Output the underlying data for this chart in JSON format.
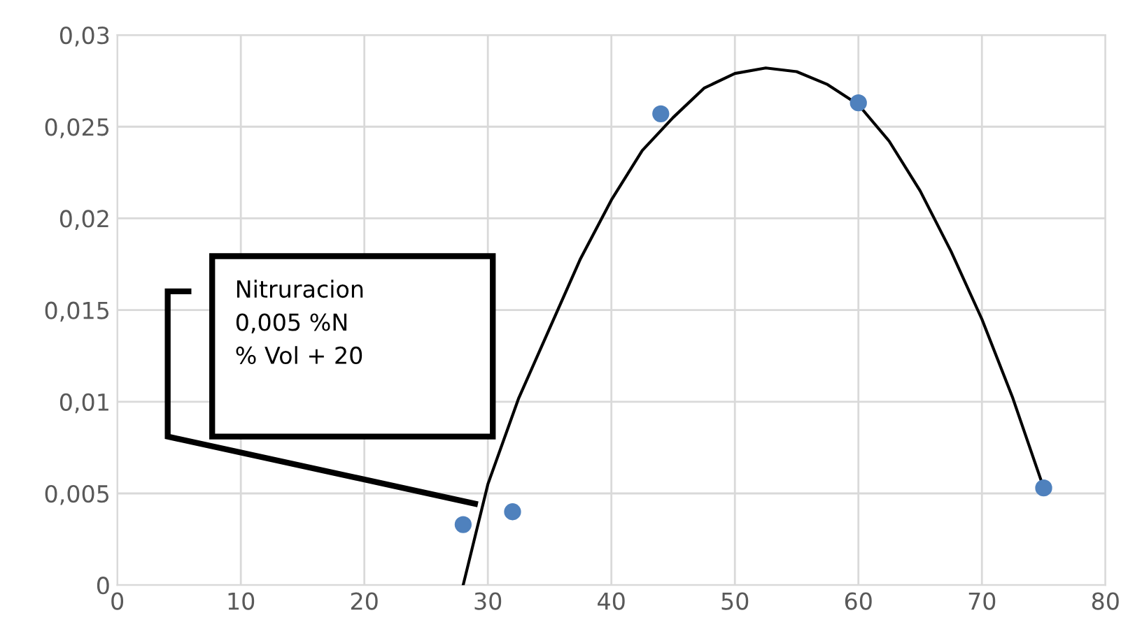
{
  "chart_data": {
    "type": "scatter",
    "xlim": [
      0,
      80
    ],
    "ylim": [
      0,
      0.03
    ],
    "xticks": [
      0,
      10,
      20,
      30,
      40,
      50,
      60,
      70,
      80
    ],
    "yticks": [
      0,
      {
        "value": 0.005,
        "label": "0,005"
      },
      {
        "value": 0.01,
        "label": "0,01"
      },
      {
        "value": 0.015,
        "label": "0,015"
      },
      {
        "value": 0.02,
        "label": "0,02"
      },
      {
        "value": 0.025,
        "label": "0,025"
      },
      {
        "value": 0.03,
        "label": "0,03"
      }
    ],
    "grid": true,
    "series": [
      {
        "color": "#4f81bd",
        "marker": "circle",
        "x": [
          28,
          32,
          44,
          60,
          75
        ],
        "values": [
          0.0033,
          0.004,
          0.0257,
          0.0263,
          0.0053
        ]
      },
      {
        "type": "line",
        "color": "#000000",
        "line_style": "solid",
        "x": [
          28,
          30,
          32.5,
          35,
          37.5,
          40,
          42.5,
          45,
          47.5,
          50,
          52.5,
          55,
          57.5,
          60,
          62.5,
          65,
          67.5,
          70,
          72.5,
          75
        ],
        "values": [
          0,
          0.0055,
          0.0102,
          0.014,
          0.0178,
          0.021,
          0.0237,
          0.0255,
          0.0271,
          0.0279,
          0.0282,
          0.028,
          0.0273,
          0.0262,
          0.0242,
          0.0215,
          0.0182,
          0.0145,
          0.0102,
          0.0053
        ]
      }
    ],
    "annotations": [
      "Nitruracion\n0,005 %N\n% Vol + 20"
    ]
  }
}
